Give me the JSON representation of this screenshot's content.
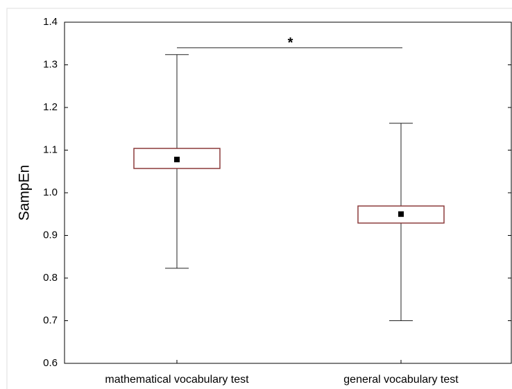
{
  "chart_data": {
    "type": "box",
    "ylabel": "SampEn",
    "categories": [
      "mathematical vocabulary test",
      "general vocabulary test"
    ],
    "whislo": [
      0.823,
      0.7
    ],
    "q1": [
      1.057,
      0.929
    ],
    "mean": [
      1.078,
      0.95
    ],
    "q3": [
      1.104,
      0.969
    ],
    "whishi": [
      1.324,
      1.163
    ],
    "color": "#8b3a3a",
    "ylim": [
      0.6,
      1.4
    ],
    "yticks": [
      {
        "value": 0.6,
        "label": "0.6"
      },
      0.7,
      0.8,
      0.9,
      {
        "value": 1.0,
        "label": "1.0"
      },
      1.1,
      1.2,
      1.3,
      {
        "value": 1.4,
        "label": "1.4"
      }
    ],
    "significance": {
      "label": "*",
      "y": 1.34
    }
  }
}
